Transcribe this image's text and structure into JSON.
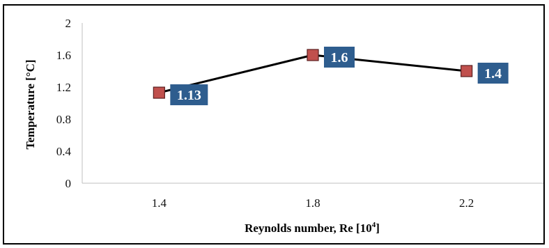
{
  "chart_data": {
    "type": "line",
    "x": [
      "1.4",
      "1.8",
      "2.2"
    ],
    "series": [
      {
        "values": [
          1.13,
          1.6,
          1.4
        ]
      }
    ],
    "data_labels": [
      "1.13",
      "1.6",
      "1.4"
    ],
    "xlabel": "Reynolds number, Re [10",
    "xlabel_sup": "4",
    "xlabel_suffix": "]",
    "ylabel": "Temperature  [°C]",
    "ylim": [
      0,
      2
    ],
    "yticks": [
      "0",
      "0.4",
      "0.8",
      "1.2",
      "1.6",
      "2"
    ],
    "grid": false,
    "legend": "none",
    "colors": {
      "line": "#000000",
      "marker_fill": "#c0504d",
      "marker_stroke": "#5a1f1f",
      "label_bg": "#2e5d8e",
      "axis": "#bfbfbf"
    }
  }
}
